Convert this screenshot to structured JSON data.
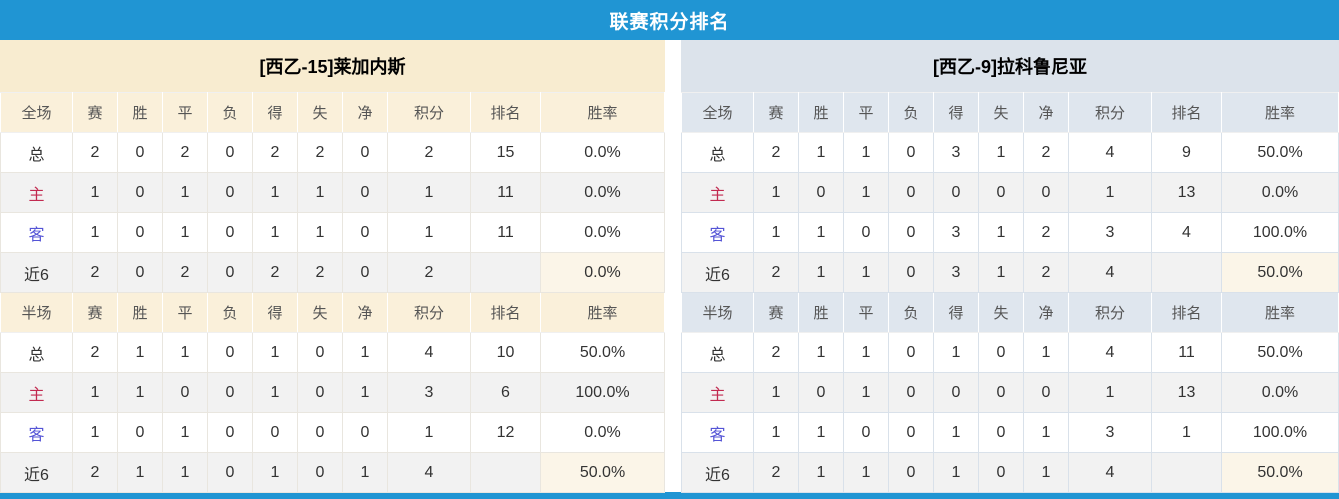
{
  "title": "联赛积分排名",
  "colors": {
    "accent_blue": "#2095d3",
    "points_red": "#e4393c",
    "rank_blue": "#3e7fc0",
    "home_label_red": "#c22a50",
    "away_label_blue": "#5454d6",
    "left_title_bg": "#f8ecd0",
    "left_header_bg": "#faf0da",
    "right_title_bg": "#dce3eb",
    "right_header_bg": "#dfe6ee",
    "alt_row_bg": "#f2f2f2",
    "recent_rate_bg": "#fbf5e8"
  },
  "columns": {
    "stats": [
      "赛",
      "胜",
      "平",
      "负",
      "得",
      "失",
      "净"
    ],
    "points": "积分",
    "rank": "排名",
    "rate": "胜率"
  },
  "sections": [
    {
      "id": "full",
      "label": "全场"
    },
    {
      "id": "half",
      "label": "半场"
    }
  ],
  "teams": [
    {
      "name": "[西乙-15]莱加内斯",
      "theme": "cream",
      "full": {
        "rows": [
          {
            "label": "总",
            "type": "total",
            "stats": [
              "2",
              "0",
              "2",
              "0",
              "2",
              "2",
              "0"
            ],
            "points": "2",
            "rank": "15",
            "rate": "0.0%"
          },
          {
            "label": "主",
            "type": "home",
            "stats": [
              "1",
              "0",
              "1",
              "0",
              "1",
              "1",
              "0"
            ],
            "points": "1",
            "rank": "11",
            "rate": "0.0%"
          },
          {
            "label": "客",
            "type": "away",
            "stats": [
              "1",
              "0",
              "1",
              "0",
              "1",
              "1",
              "0"
            ],
            "points": "1",
            "rank": "11",
            "rate": "0.0%"
          },
          {
            "label": "近6",
            "type": "recent6",
            "stats": [
              "2",
              "0",
              "2",
              "0",
              "2",
              "2",
              "0"
            ],
            "points": "2",
            "rank": "",
            "rate": "0.0%"
          }
        ]
      },
      "half": {
        "rows": [
          {
            "label": "总",
            "type": "total",
            "stats": [
              "2",
              "1",
              "1",
              "0",
              "1",
              "0",
              "1"
            ],
            "points": "4",
            "rank": "10",
            "rate": "50.0%"
          },
          {
            "label": "主",
            "type": "home",
            "stats": [
              "1",
              "1",
              "0",
              "0",
              "1",
              "0",
              "1"
            ],
            "points": "3",
            "rank": "6",
            "rate": "100.0%"
          },
          {
            "label": "客",
            "type": "away",
            "stats": [
              "1",
              "0",
              "1",
              "0",
              "0",
              "0",
              "0"
            ],
            "points": "1",
            "rank": "12",
            "rate": "0.0%"
          },
          {
            "label": "近6",
            "type": "recent6",
            "stats": [
              "2",
              "1",
              "1",
              "0",
              "1",
              "0",
              "1"
            ],
            "points": "4",
            "rank": "",
            "rate": "50.0%"
          }
        ]
      }
    },
    {
      "name": "[西乙-9]拉科鲁尼亚",
      "theme": "blue",
      "full": {
        "rows": [
          {
            "label": "总",
            "type": "total",
            "stats": [
              "2",
              "1",
              "1",
              "0",
              "3",
              "1",
              "2"
            ],
            "points": "4",
            "rank": "9",
            "rate": "50.0%"
          },
          {
            "label": "主",
            "type": "home",
            "stats": [
              "1",
              "0",
              "1",
              "0",
              "0",
              "0",
              "0"
            ],
            "points": "1",
            "rank": "13",
            "rate": "0.0%"
          },
          {
            "label": "客",
            "type": "away",
            "stats": [
              "1",
              "1",
              "0",
              "0",
              "3",
              "1",
              "2"
            ],
            "points": "3",
            "rank": "4",
            "rate": "100.0%"
          },
          {
            "label": "近6",
            "type": "recent6",
            "stats": [
              "2",
              "1",
              "1",
              "0",
              "3",
              "1",
              "2"
            ],
            "points": "4",
            "rank": "",
            "rate": "50.0%"
          }
        ]
      },
      "half": {
        "rows": [
          {
            "label": "总",
            "type": "total",
            "stats": [
              "2",
              "1",
              "1",
              "0",
              "1",
              "0",
              "1"
            ],
            "points": "4",
            "rank": "11",
            "rate": "50.0%"
          },
          {
            "label": "主",
            "type": "home",
            "stats": [
              "1",
              "0",
              "1",
              "0",
              "0",
              "0",
              "0"
            ],
            "points": "1",
            "rank": "13",
            "rate": "0.0%"
          },
          {
            "label": "客",
            "type": "away",
            "stats": [
              "1",
              "1",
              "0",
              "0",
              "1",
              "0",
              "1"
            ],
            "points": "3",
            "rank": "1",
            "rate": "100.0%"
          },
          {
            "label": "近6",
            "type": "recent6",
            "stats": [
              "2",
              "1",
              "1",
              "0",
              "1",
              "0",
              "1"
            ],
            "points": "4",
            "rank": "",
            "rate": "50.0%"
          }
        ]
      }
    }
  ]
}
